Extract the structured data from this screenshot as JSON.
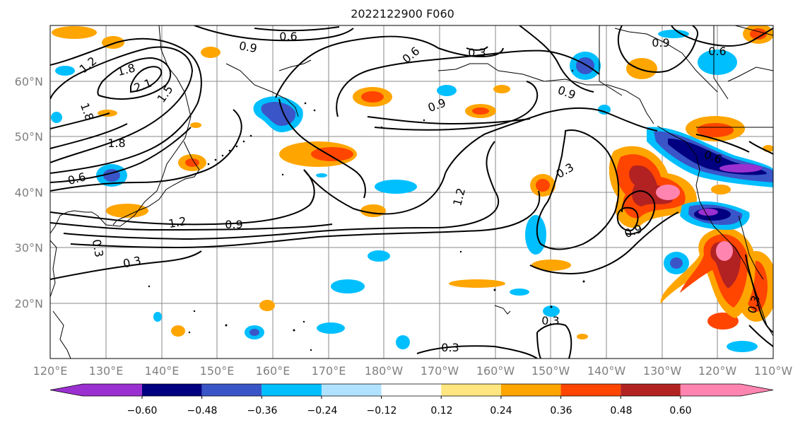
{
  "title": "2022122900 F060",
  "lat_labels": [
    "60°N",
    "50°N",
    "40°N",
    "30°N",
    "20°N"
  ],
  "lon_labels": [
    "120°E",
    "130°E",
    "140°E",
    "150°E",
    "160°E",
    "170°E",
    "180°W",
    "170°W",
    "160°W",
    "150°W",
    "140°W",
    "130°W",
    "120°W",
    "110°W"
  ],
  "colorbar": {
    "tick_labels": [
      "−0.60",
      "−0.48",
      "−0.36",
      "−0.24",
      "−0.12",
      "0.12",
      "0.24",
      "0.36",
      "0.48",
      "0.60"
    ],
    "colors": [
      "#9b30d0",
      "#000080",
      "#3a55c8",
      "#00bfff",
      "#b0e2ff",
      "#ffffff",
      "#ffe680",
      "#ffa500",
      "#ff4500",
      "#b22222",
      "#ff85b0"
    ]
  },
  "contour_labels": [
    "0.6",
    "0.9",
    "0.6",
    "0.3",
    "0.9",
    "0.6",
    "1.2",
    "1.8",
    "2.1",
    "1.5",
    "1.8",
    "1.8",
    "0.9",
    "0.9",
    "0.6",
    "0.6",
    "0.3",
    "1.2",
    "1.2",
    "0.9",
    "0.3",
    "0.3",
    "0.9",
    "0.3",
    "0.3",
    "0.3"
  ]
}
